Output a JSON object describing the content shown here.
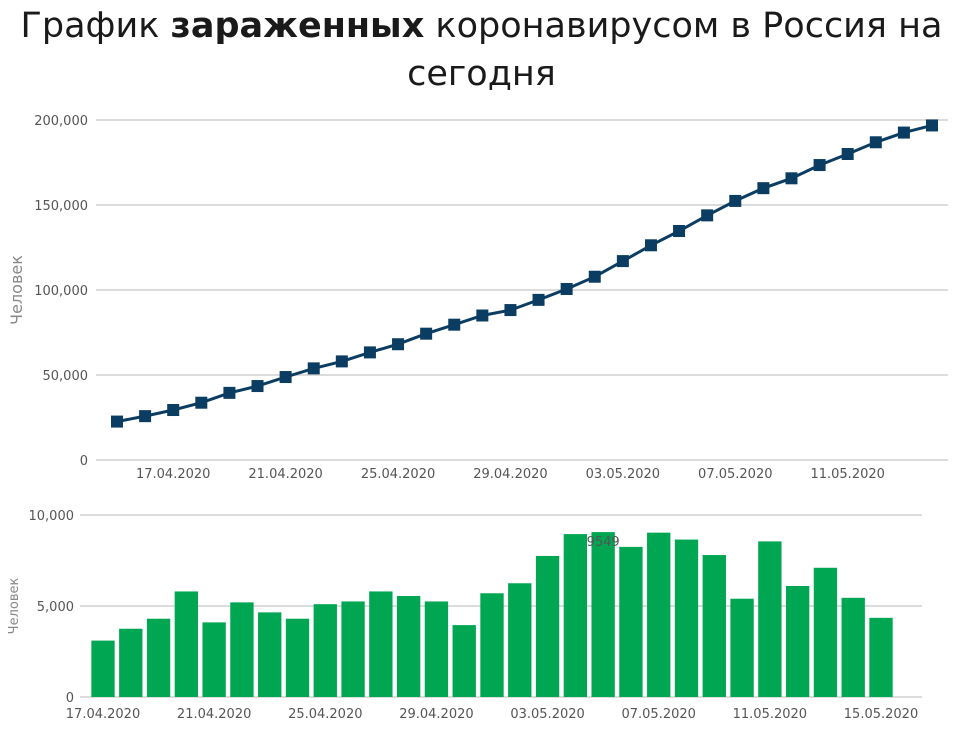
{
  "title": {
    "prefix": "График ",
    "bold": "зараженных",
    "suffix": " коронавирусом в Россия на сегодня"
  },
  "colors": {
    "line": "#0b3d62",
    "bar": "#00a651",
    "grid": "#d0d0d0"
  },
  "chart_data": [
    {
      "type": "line",
      "ylabel": "Человек",
      "ylim": [
        0,
        200000
      ],
      "yticks": [
        "0",
        "50,000",
        "100,000",
        "150,000",
        "200,000"
      ],
      "ytick_values": [
        0,
        50000,
        100000,
        150000,
        200000
      ],
      "xtick_labels": [
        "17.04.2020",
        "21.04.2020",
        "25.04.2020",
        "29.04.2020",
        "03.05.2020",
        "07.05.2020",
        "11.05.2020"
      ],
      "xtick_index": [
        2,
        6,
        10,
        14,
        18,
        22,
        26
      ],
      "series": [
        {
          "values": [
            22600,
            25800,
            29400,
            33700,
            39500,
            43500,
            48800,
            53900,
            58000,
            63300,
            68100,
            74300,
            79600,
            85000,
            88200,
            94200,
            100600,
            107800,
            117000,
            126300,
            134700,
            143900,
            152400,
            159900,
            165700,
            173500,
            180000,
            186900,
            192600,
            196800
          ]
        }
      ]
    },
    {
      "type": "bar",
      "ylabel": "Человек",
      "ylim": [
        0,
        10000
      ],
      "yticks": [
        "0",
        "5,000",
        "10,000"
      ],
      "ytick_values": [
        0,
        5000,
        10000
      ],
      "xtick_labels": [
        "17.04.2020",
        "21.04.2020",
        "25.04.2020",
        "29.04.2020",
        "03.05.2020",
        "07.05.2020",
        "11.05.2020",
        "15.05.2020"
      ],
      "xtick_index": [
        0,
        4,
        8,
        12,
        16,
        20,
        24,
        28
      ],
      "annotation": "9549",
      "values": [
        3100,
        3750,
        4300,
        5800,
        4100,
        5200,
        4650,
        4300,
        5100,
        5250,
        5800,
        5550,
        5250,
        3950,
        5700,
        6250,
        7750,
        8950,
        9060,
        8250,
        9030,
        8650,
        7800,
        5400,
        8550,
        6100,
        7100,
        5450,
        4350
      ]
    }
  ]
}
